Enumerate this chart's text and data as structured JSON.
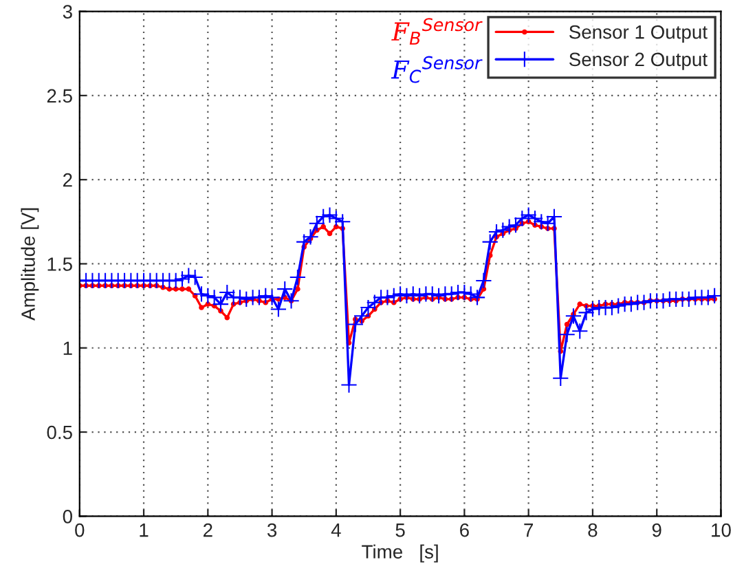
{
  "chart_data": {
    "type": "line",
    "xlabel": "Time   [s]",
    "ylabel": "Amplitude [V]",
    "x": [
      0,
      0.1,
      0.2,
      0.3,
      0.4,
      0.5,
      0.6,
      0.7,
      0.8,
      0.9,
      1,
      1.1,
      1.2,
      1.3,
      1.4,
      1.5,
      1.6,
      1.7,
      1.8,
      1.9,
      2,
      2.1,
      2.2,
      2.3,
      2.4,
      2.5,
      2.6,
      2.7,
      2.8,
      2.9,
      3,
      3.1,
      3.2,
      3.3,
      3.4,
      3.5,
      3.6,
      3.7,
      3.8,
      3.9,
      4,
      4.1,
      4.2,
      4.3,
      4.4,
      4.5,
      4.6,
      4.7,
      4.8,
      4.9,
      5,
      5.1,
      5.2,
      5.3,
      5.4,
      5.5,
      5.6,
      5.7,
      5.8,
      5.9,
      6,
      6.1,
      6.2,
      6.3,
      6.4,
      6.5,
      6.6,
      6.7,
      6.8,
      6.9,
      7,
      7.1,
      7.2,
      7.3,
      7.4,
      7.5,
      7.6,
      7.7,
      7.8,
      7.9,
      8,
      8.1,
      8.2,
      8.3,
      8.4,
      8.5,
      8.6,
      8.7,
      8.8,
      8.9,
      9,
      9.1,
      9.2,
      9.3,
      9.4,
      9.5,
      9.6,
      9.7,
      9.8,
      9.9
    ],
    "series": [
      {
        "name": "Sensor 1 Output",
        "color": "#ff0000",
        "marker": "circle",
        "values": [
          1.37,
          1.37,
          1.37,
          1.37,
          1.37,
          1.37,
          1.37,
          1.37,
          1.37,
          1.37,
          1.37,
          1.37,
          1.37,
          1.36,
          1.35,
          1.35,
          1.35,
          1.35,
          1.31,
          1.24,
          1.26,
          1.25,
          1.22,
          1.18,
          1.26,
          1.27,
          1.28,
          1.29,
          1.28,
          1.27,
          1.29,
          1.29,
          1.3,
          1.28,
          1.35,
          1.6,
          1.65,
          1.7,
          1.72,
          1.68,
          1.72,
          1.71,
          1.03,
          1.17,
          1.16,
          1.19,
          1.23,
          1.27,
          1.28,
          1.27,
          1.29,
          1.3,
          1.29,
          1.29,
          1.3,
          1.29,
          1.3,
          1.29,
          1.29,
          1.3,
          1.3,
          1.29,
          1.29,
          1.35,
          1.55,
          1.66,
          1.68,
          1.7,
          1.71,
          1.74,
          1.75,
          1.73,
          1.72,
          1.71,
          1.71,
          0.98,
          1.14,
          1.2,
          1.26,
          1.25,
          1.25,
          1.25,
          1.26,
          1.26,
          1.26,
          1.27,
          1.27,
          1.27,
          1.27,
          1.28,
          1.28,
          1.28,
          1.28,
          1.28,
          1.29,
          1.29,
          1.29,
          1.29,
          1.29,
          1.29
        ]
      },
      {
        "name": "Sensor 2 Output",
        "color": "#0000ff",
        "marker": "cross",
        "values": [
          1.4,
          1.4,
          1.4,
          1.4,
          1.4,
          1.4,
          1.4,
          1.4,
          1.4,
          1.4,
          1.4,
          1.4,
          1.4,
          1.4,
          1.4,
          1.4,
          1.41,
          1.43,
          1.42,
          1.32,
          1.31,
          1.3,
          1.26,
          1.33,
          1.3,
          1.3,
          1.29,
          1.3,
          1.3,
          1.31,
          1.3,
          1.23,
          1.35,
          1.28,
          1.42,
          1.63,
          1.66,
          1.74,
          1.78,
          1.79,
          1.77,
          1.75,
          0.78,
          1.14,
          1.19,
          1.24,
          1.27,
          1.3,
          1.3,
          1.31,
          1.32,
          1.31,
          1.32,
          1.31,
          1.32,
          1.32,
          1.31,
          1.32,
          1.32,
          1.33,
          1.33,
          1.32,
          1.3,
          1.4,
          1.63,
          1.69,
          1.7,
          1.72,
          1.73,
          1.77,
          1.79,
          1.77,
          1.75,
          1.74,
          1.78,
          0.82,
          1.08,
          1.19,
          1.1,
          1.21,
          1.23,
          1.24,
          1.24,
          1.24,
          1.25,
          1.26,
          1.26,
          1.27,
          1.27,
          1.28,
          1.28,
          1.28,
          1.29,
          1.29,
          1.29,
          1.29,
          1.3,
          1.3,
          1.3,
          1.31
        ]
      }
    ],
    "annotations": [
      "F$_{B}$$^{Sensor}$",
      "F$_{C}$$^{Sensor}$"
    ],
    "xlim": [
      0,
      10
    ],
    "xticks": [
      0,
      1,
      2,
      3,
      4,
      5,
      6,
      7,
      8,
      9,
      10
    ],
    "ylim": [
      0,
      3
    ],
    "yticks": [
      0,
      0.5,
      1,
      1.5,
      2,
      2.5,
      3
    ],
    "grid": true,
    "legend": "top right",
    "line_style": "solid"
  }
}
